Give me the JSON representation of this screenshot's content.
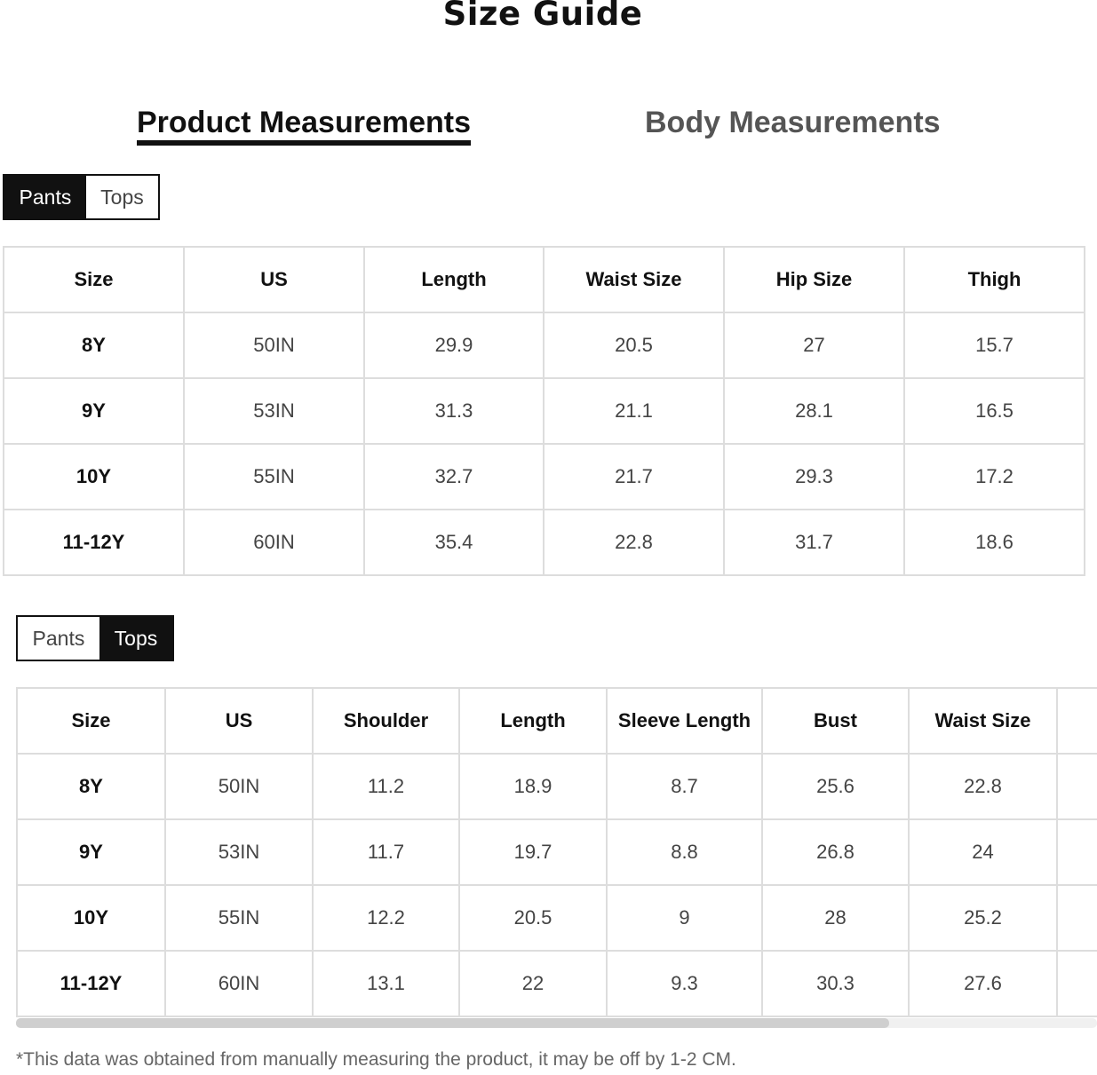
{
  "title": "Size Guide",
  "measure_tabs": [
    {
      "label": "Product Measurements",
      "active": true
    },
    {
      "label": "Body Measurements",
      "active": false
    }
  ],
  "pants_section": {
    "toggle": {
      "pants": "Pants",
      "tops": "Tops",
      "selected": "Pants"
    },
    "headers": [
      "Size",
      "US",
      "Length",
      "Waist Size",
      "Hip Size",
      "Thigh"
    ],
    "rows": [
      [
        "8Y",
        "50IN",
        "29.9",
        "20.5",
        "27",
        "15.7"
      ],
      [
        "9Y",
        "53IN",
        "31.3",
        "21.1",
        "28.1",
        "16.5"
      ],
      [
        "10Y",
        "55IN",
        "32.7",
        "21.7",
        "29.3",
        "17.2"
      ],
      [
        "11-12Y",
        "60IN",
        "35.4",
        "22.8",
        "31.7",
        "18.6"
      ]
    ]
  },
  "tops_section": {
    "toggle": {
      "pants": "Pants",
      "tops": "Tops",
      "selected": "Tops"
    },
    "headers": [
      "Size",
      "US",
      "Shoulder",
      "Length",
      "Sleeve Length",
      "Bust",
      "Waist Size",
      ""
    ],
    "rows": [
      [
        "8Y",
        "50IN",
        "11.2",
        "18.9",
        "8.7",
        "25.6",
        "22.8",
        ""
      ],
      [
        "9Y",
        "53IN",
        "11.7",
        "19.7",
        "8.8",
        "26.8",
        "24",
        ""
      ],
      [
        "10Y",
        "55IN",
        "12.2",
        "20.5",
        "9",
        "28",
        "25.2",
        ""
      ],
      [
        "11-12Y",
        "60IN",
        "13.1",
        "22",
        "9.3",
        "30.3",
        "27.6",
        ""
      ]
    ],
    "scroll_position_percent": 0
  },
  "footnote": "*This data was obtained from manually measuring the product, it may be off by 1-2 CM."
}
